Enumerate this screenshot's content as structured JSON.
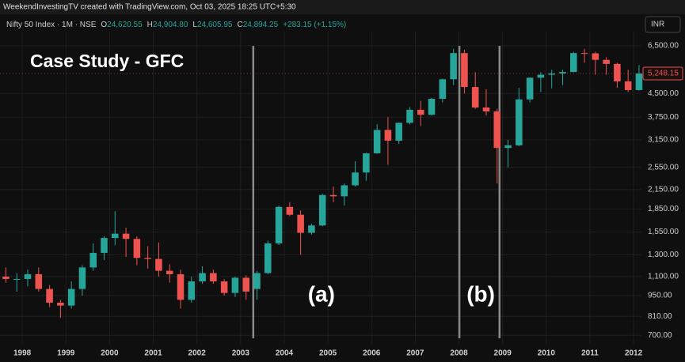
{
  "header": "WeekendInvestingTV created with TradingView.com, Oct 03, 2025 18:25 UTC+5:30",
  "legend": {
    "symbol": "Nifty 50 Index · 1M · NSE",
    "fields": [
      {
        "key": "O",
        "value": "24,620.55"
      },
      {
        "key": "H",
        "value": "24,904.80"
      },
      {
        "key": "L",
        "value": "24,605.95"
      },
      {
        "key": "C",
        "value": "24,894.25"
      }
    ],
    "change": "+283.15 (+1.15%)"
  },
  "currency": "INR",
  "chart_data": {
    "type": "candlestick",
    "title": "Case Study - GFC",
    "annotations": [
      {
        "text": "(a)",
        "x": 2004.85
      },
      {
        "text": "(b)",
        "x": 2008.5
      }
    ],
    "vlines": [
      2003.29,
      2008.01,
      2008.93
    ],
    "up_color": "#26a69a",
    "down_color": "#ef5350",
    "log_scale": true,
    "grid": true,
    "xlim": [
      1997.49,
      2012.18
    ],
    "xticks": [
      1998,
      1999,
      2000,
      2001,
      2002,
      2003,
      2004,
      2005,
      2006,
      2007,
      2008,
      2009,
      2010,
      2011,
      2012
    ],
    "ylim": [
      680,
      6900
    ],
    "yticks": [
      {
        "value": 700,
        "label": "700.00"
      },
      {
        "value": 810,
        "label": "810.00"
      },
      {
        "value": 950,
        "label": "950.00"
      },
      {
        "value": 1100,
        "label": "1,100.00"
      },
      {
        "value": 1300,
        "label": "1,300.00"
      },
      {
        "value": 1550,
        "label": "1,550.00"
      },
      {
        "value": 1850,
        "label": "1,850.00"
      },
      {
        "value": 2150,
        "label": "2,150.00"
      },
      {
        "value": 2550,
        "label": "2,550.00"
      },
      {
        "value": 3150,
        "label": "3,150.00"
      },
      {
        "value": 3750,
        "label": "3,750.00"
      },
      {
        "value": 4500,
        "label": "4,500.00"
      },
      {
        "value": 6500,
        "label": "6,500.00"
      }
    ],
    "last_price": {
      "value": 5248.15,
      "label": "5,248.15"
    },
    "x": [
      1997.625,
      1997.875,
      1998.125,
      1998.375,
      1998.625,
      1998.875,
      1999.125,
      1999.375,
      1999.625,
      1999.875,
      2000.125,
      2000.375,
      2000.625,
      2000.875,
      2001.125,
      2001.375,
      2001.625,
      2001.875,
      2002.125,
      2002.375,
      2002.625,
      2002.875,
      2003.125,
      2003.375,
      2003.625,
      2003.875,
      2004.125,
      2004.375,
      2004.625,
      2004.875,
      2005.125,
      2005.375,
      2005.625,
      2005.875,
      2006.125,
      2006.375,
      2006.625,
      2006.875,
      2007.125,
      2007.375,
      2007.625,
      2007.875,
      2008.125,
      2008.375,
      2008.625,
      2008.875,
      2009.125,
      2009.375,
      2009.625,
      2009.875,
      2010.125,
      2010.375,
      2010.625,
      2010.875,
      2011.125,
      2011.375,
      2011.625,
      2011.875,
      2012.125
    ],
    "open": [
      1100,
      1080,
      1080,
      1120,
      1000,
      900,
      880,
      1000,
      1180,
      1320,
      1480,
      1530,
      1470,
      1270,
      1260,
      1150,
      1120,
      920,
      1060,
      1130,
      1060,
      970,
      1090,
      1000,
      1130,
      1420,
      1880,
      1770,
      1540,
      1630,
      2060,
      2040,
      2220,
      2450,
      2840,
      3400,
      3130,
      3590,
      3970,
      3820,
      4320,
      5020,
      6140,
      4730,
      4040,
      3920,
      2960,
      3020,
      4300,
      5080,
      5200,
      5250,
      5310,
      6140,
      6130,
      5830,
      5650,
      4940,
      4620
    ],
    "high": [
      1180,
      1130,
      1160,
      1180,
      1030,
      920,
      1060,
      1200,
      1420,
      1500,
      1820,
      1600,
      1500,
      1390,
      1430,
      1210,
      1160,
      1100,
      1190,
      1160,
      1080,
      1100,
      1110,
      1150,
      1450,
      1900,
      1950,
      1830,
      1650,
      2080,
      2200,
      2250,
      2670,
      2850,
      3550,
      3750,
      3600,
      4050,
      4250,
      4350,
      5050,
      6350,
      6300,
      5300,
      4650,
      4000,
      3150,
      4700,
      5100,
      5300,
      5400,
      5400,
      6200,
      6350,
      6200,
      5950,
      5700,
      5400,
      5600
    ],
    "low": [
      1050,
      980,
      1020,
      980,
      870,
      800,
      860,
      950,
      1150,
      1250,
      1400,
      1280,
      1200,
      1170,
      1100,
      1050,
      860,
      900,
      1040,
      1040,
      950,
      940,
      920,
      920,
      1120,
      1400,
      1750,
      1300,
      1520,
      1620,
      1950,
      1900,
      2200,
      2300,
      2830,
      2600,
      3050,
      3550,
      3500,
      3800,
      4200,
      4800,
      4500,
      4000,
      3800,
      2250,
      2550,
      3000,
      4200,
      4550,
      4680,
      4800,
      5300,
      5700,
      5200,
      5200,
      4700,
      4550,
      4600
    ],
    "close": [
      1080,
      1080,
      1120,
      1000,
      900,
      880,
      1000,
      1180,
      1320,
      1480,
      1530,
      1470,
      1270,
      1260,
      1150,
      1120,
      920,
      1060,
      1130,
      1060,
      970,
      1090,
      980,
      1130,
      1420,
      1880,
      1770,
      1540,
      1630,
      2060,
      2040,
      2220,
      2450,
      2840,
      3400,
      3130,
      3590,
      3970,
      3820,
      4320,
      5020,
      6140,
      4730,
      4040,
      3920,
      2960,
      3020,
      4300,
      5080,
      5200,
      5250,
      5310,
      6140,
      6130,
      5830,
      5650,
      4940,
      4620,
      5248.15
    ]
  }
}
